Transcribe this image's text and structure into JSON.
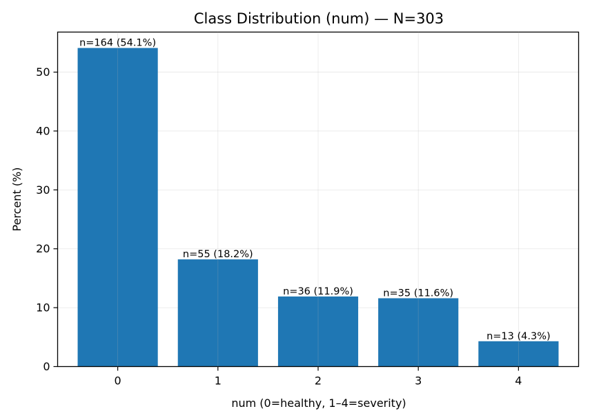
{
  "chart_data": {
    "type": "bar",
    "title": "Class Distribution (num) — N=303",
    "xlabel": "num (0=healthy, 1–4=severity)",
    "ylabel": "Percent (%)",
    "categories": [
      "0",
      "1",
      "2",
      "3",
      "4"
    ],
    "values": [
      54.1,
      18.2,
      11.9,
      11.6,
      4.3
    ],
    "data_labels": [
      "n=164 (54.1%)",
      "n=55 (18.2%)",
      "n=36 (11.9%)",
      "n=35 (11.6%)",
      "n=13 (4.3%)"
    ],
    "ylim": [
      0,
      56.8
    ],
    "yticks": [
      "0",
      "10",
      "20",
      "30",
      "40",
      "50"
    ],
    "grid": true,
    "bar_color": "#1f77b4"
  }
}
